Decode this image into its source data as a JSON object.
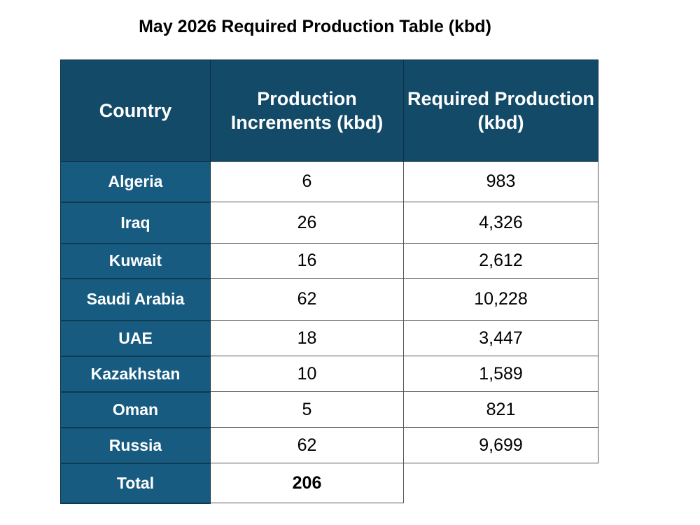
{
  "title": "May 2026 Required Production Table (kbd)",
  "colors": {
    "header_bg": "#134a68",
    "country_bg": "#175b80"
  },
  "chart_data": {
    "type": "table",
    "title": "May 2026 Required Production Table (kbd)",
    "headers": [
      "Country",
      "Production Increments (kbd)",
      "Required Production (kbd)"
    ],
    "rows": [
      {
        "country": "Algeria",
        "increment": "6",
        "required": "983"
      },
      {
        "country": "Iraq",
        "increment": "26",
        "required": "4,326"
      },
      {
        "country": "Kuwait",
        "increment": "16",
        "required": "2,612"
      },
      {
        "country": "Saudi Arabia",
        "increment": "62",
        "required": "10,228"
      },
      {
        "country": "UAE",
        "increment": "18",
        "required": "3,447"
      },
      {
        "country": "Kazakhstan",
        "increment": "10",
        "required": "1,589"
      },
      {
        "country": "Oman",
        "increment": "5",
        "required": "821"
      },
      {
        "country": "Russia",
        "increment": "62",
        "required": "9,699"
      }
    ],
    "total": {
      "label": "Total",
      "increment": "206"
    }
  }
}
